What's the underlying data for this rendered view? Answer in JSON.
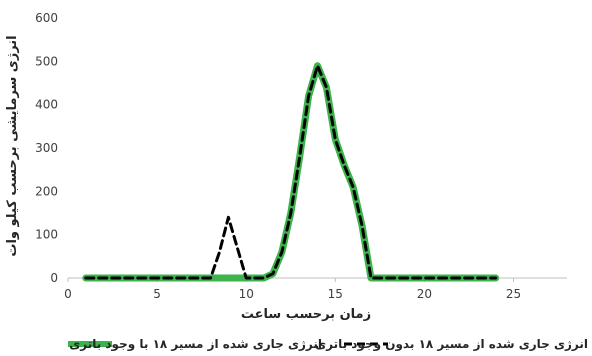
{
  "chart_data": {
    "type": "line",
    "xlabel": "زمان برحسب ساعت",
    "ylabel": "انرژی سرمایشی برحسب کیلو وات",
    "xlim": [
      0,
      28
    ],
    "ylim": [
      0,
      600
    ],
    "x_ticks": [
      0,
      5,
      10,
      15,
      20,
      25
    ],
    "y_ticks": [
      0,
      100,
      200,
      300,
      400,
      500,
      600
    ],
    "grid": false,
    "legend_position": "bottom",
    "series": [
      {
        "name": "انرژی جاری شده از مسیر ۱۸ با وجود باتری",
        "color": "#3cb44b",
        "style": "solid",
        "x": [
          1,
          2,
          3,
          4,
          5,
          6,
          7,
          8,
          9,
          10,
          11,
          11.5,
          12,
          12.5,
          13,
          13.5,
          14,
          14.5,
          15,
          15.5,
          16,
          16.5,
          17,
          18,
          19,
          20,
          21,
          22,
          23,
          24
        ],
        "y": [
          0,
          0,
          0,
          0,
          0,
          0,
          0,
          0,
          0,
          0,
          0,
          10,
          60,
          150,
          280,
          420,
          490,
          440,
          320,
          260,
          210,
          120,
          0,
          0,
          0,
          0,
          0,
          0,
          0,
          0
        ]
      },
      {
        "name": "انرژی جاری شده از مسیر ۱۸ بدون وجود باتری",
        "color": "#000000",
        "style": "dashed",
        "x": [
          1,
          2,
          3,
          4,
          5,
          6,
          7,
          8,
          8.5,
          9,
          9.5,
          10,
          11,
          11.5,
          12,
          12.5,
          13,
          13.5,
          14,
          14.5,
          15,
          15.5,
          16,
          16.5,
          17,
          18,
          19,
          20,
          21,
          22,
          23,
          24
        ],
        "y": [
          0,
          0,
          0,
          0,
          0,
          0,
          0,
          0,
          60,
          140,
          70,
          0,
          0,
          10,
          60,
          150,
          280,
          420,
          490,
          440,
          320,
          260,
          210,
          120,
          0,
          0,
          0,
          0,
          0,
          0,
          0,
          0
        ]
      }
    ]
  }
}
